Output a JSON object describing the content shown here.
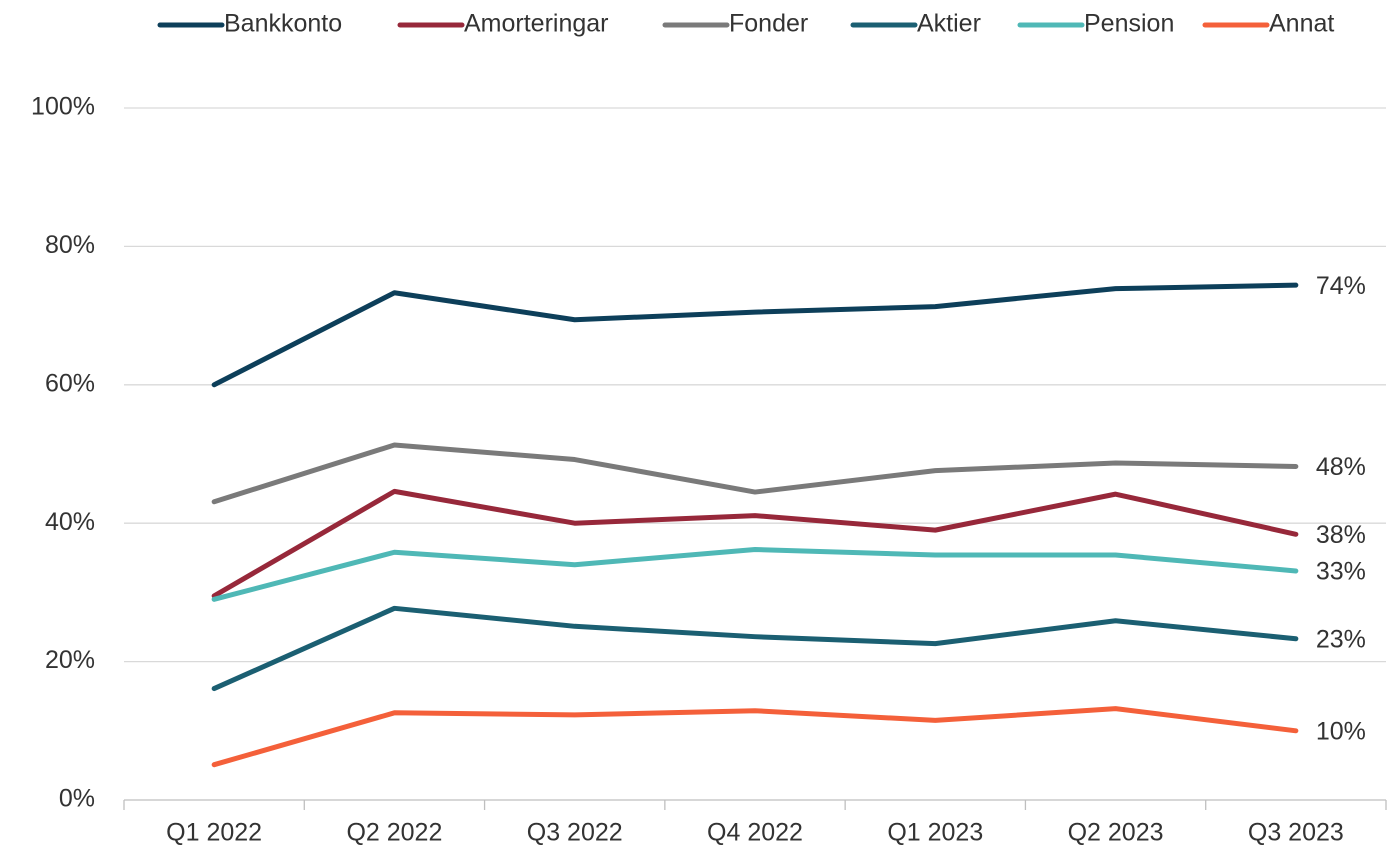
{
  "chart_data": {
    "type": "line",
    "categories": [
      "Q1 2022",
      "Q2 2022",
      "Q3 2022",
      "Q4 2022",
      "Q1 2023",
      "Q2 2023",
      "Q3 2023"
    ],
    "series": [
      {
        "name": "Bankkonto",
        "color": "#0d3f5a",
        "values": [
          60.0,
          73.3,
          69.4,
          70.5,
          71.3,
          73.9,
          74.4
        ],
        "value_labels": [
          null,
          null,
          null,
          null,
          null,
          null,
          "74%"
        ]
      },
      {
        "name": "Amorteringar",
        "color": "#97283a",
        "values": [
          29.5,
          44.6,
          40.0,
          41.1,
          39.0,
          44.2,
          38.4
        ],
        "value_labels": [
          null,
          null,
          null,
          null,
          null,
          null,
          "38%"
        ]
      },
      {
        "name": "Fonder",
        "color": "#7a7a7a",
        "values": [
          43.1,
          51.3,
          49.2,
          44.5,
          47.6,
          48.7,
          48.2
        ],
        "value_labels": [
          null,
          null,
          null,
          null,
          null,
          null,
          "48%"
        ]
      },
      {
        "name": "Aktier",
        "color": "#1b5f72",
        "values": [
          16.1,
          27.7,
          25.1,
          23.6,
          22.6,
          25.9,
          23.3
        ],
        "value_labels": [
          null,
          null,
          null,
          null,
          null,
          null,
          "23%"
        ]
      },
      {
        "name": "Pension",
        "color": "#4fb8b6",
        "values": [
          29.0,
          35.8,
          34.0,
          36.2,
          35.4,
          35.4,
          33.1
        ],
        "value_labels": [
          null,
          null,
          null,
          null,
          null,
          null,
          "33%"
        ]
      },
      {
        "name": "Annat",
        "color": "#f4603a",
        "values": [
          5.1,
          12.6,
          12.3,
          12.9,
          11.5,
          13.2,
          10.0
        ],
        "value_labels": [
          null,
          null,
          null,
          null,
          null,
          null,
          "10%"
        ]
      }
    ],
    "ylim": [
      0,
      100
    ],
    "yticks": [
      {
        "value": 0,
        "label": "0%"
      },
      {
        "value": 20,
        "label": "20%"
      },
      {
        "value": 40,
        "label": "40%"
      },
      {
        "value": 60,
        "label": "60%"
      },
      {
        "value": 80,
        "label": "80%"
      },
      {
        "value": 100,
        "label": "100%"
      }
    ],
    "grid": true,
    "legend": "top"
  }
}
